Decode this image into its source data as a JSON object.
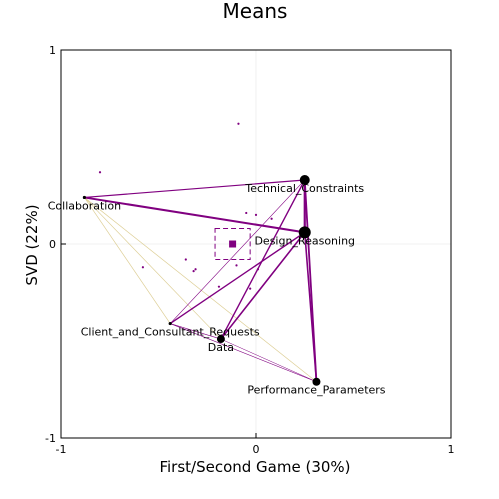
{
  "chart_data": {
    "type": "scatter",
    "title": "Means",
    "xlabel": "First/Second Game (30%)",
    "ylabel": "SVD (22%)",
    "xlim": [
      -1,
      1
    ],
    "ylim": [
      -1,
      1
    ],
    "xticks": [
      {
        "value": -1,
        "label": "-1"
      },
      {
        "value": 0,
        "label": "0"
      },
      {
        "value": 1,
        "label": "1"
      }
    ],
    "yticks": [
      {
        "value": -1,
        "label": "-1"
      },
      {
        "value": 0,
        "label": "0"
      },
      {
        "value": 1,
        "label": "1"
      }
    ],
    "grid": true,
    "colors": {
      "primary": "#800080",
      "node": "#000000",
      "faint": "#d9c98a"
    },
    "nodes": [
      {
        "label": "Technical_Constraints",
        "x": 0.25,
        "y": 0.33,
        "size": 5
      },
      {
        "label": "Design_Reasoning",
        "x": 0.25,
        "y": 0.06,
        "size": 6
      },
      {
        "label": "Collaboration",
        "x": -0.88,
        "y": 0.24,
        "size": 1
      },
      {
        "label": "Client_and_Consultant_Requests",
        "x": -0.44,
        "y": -0.41,
        "size": 1
      },
      {
        "label": "Data",
        "x": -0.18,
        "y": -0.49,
        "size": 4
      },
      {
        "label": "Performance_Parameters",
        "x": 0.31,
        "y": -0.71,
        "size": 4
      }
    ],
    "edges": [
      {
        "from": "Technical_Constraints",
        "to": "Design_Reasoning",
        "weight": 2.2
      },
      {
        "from": "Collaboration",
        "to": "Design_Reasoning",
        "weight": 2.0
      },
      {
        "from": "Collaboration",
        "to": "Technical_Constraints",
        "weight": 1.2
      },
      {
        "from": "Technical_Constraints",
        "to": "Performance_Parameters",
        "weight": 1.8
      },
      {
        "from": "Design_Reasoning",
        "to": "Performance_Parameters",
        "weight": 1.6
      },
      {
        "from": "Data",
        "to": "Design_Reasoning",
        "weight": 1.6
      },
      {
        "from": "Data",
        "to": "Technical_Constraints",
        "weight": 1.4
      },
      {
        "from": "Client_and_Consultant_Requests",
        "to": "Design_Reasoning",
        "weight": 1.4
      },
      {
        "from": "Client_and_Consultant_Requests",
        "to": "Technical_Constraints",
        "weight": 0.6
      },
      {
        "from": "Client_and_Consultant_Requests",
        "to": "Performance_Parameters",
        "weight": 0.6
      },
      {
        "from": "Client_and_Consultant_Requests",
        "to": "Data",
        "weight": 0.6
      },
      {
        "from": "Data",
        "to": "Performance_Parameters",
        "weight": 0.5
      }
    ],
    "faint_edges": [
      {
        "from": "Collaboration",
        "to": "Data"
      },
      {
        "from": "Collaboration",
        "to": "Client_and_Consultant_Requests"
      },
      {
        "from": "Collaboration",
        "to": "Performance_Parameters"
      }
    ],
    "mean": {
      "x": -0.12,
      "y": 0.0,
      "ci_x": [
        -0.21,
        -0.03
      ],
      "ci_y": [
        -0.08,
        0.08
      ]
    },
    "points": [
      {
        "x": -0.09,
        "y": 0.62
      },
      {
        "x": -0.8,
        "y": 0.37
      },
      {
        "x": -0.05,
        "y": 0.16
      },
      {
        "x": 0.0,
        "y": 0.15
      },
      {
        "x": 0.08,
        "y": 0.13
      },
      {
        "x": -0.36,
        "y": -0.08
      },
      {
        "x": -0.32,
        "y": -0.14
      },
      {
        "x": -0.31,
        "y": -0.13
      },
      {
        "x": -0.58,
        "y": -0.12
      },
      {
        "x": -0.19,
        "y": -0.22
      },
      {
        "x": -0.1,
        "y": -0.11
      },
      {
        "x": -0.03,
        "y": -0.23
      },
      {
        "x": 0.01,
        "y": -0.13
      }
    ]
  }
}
